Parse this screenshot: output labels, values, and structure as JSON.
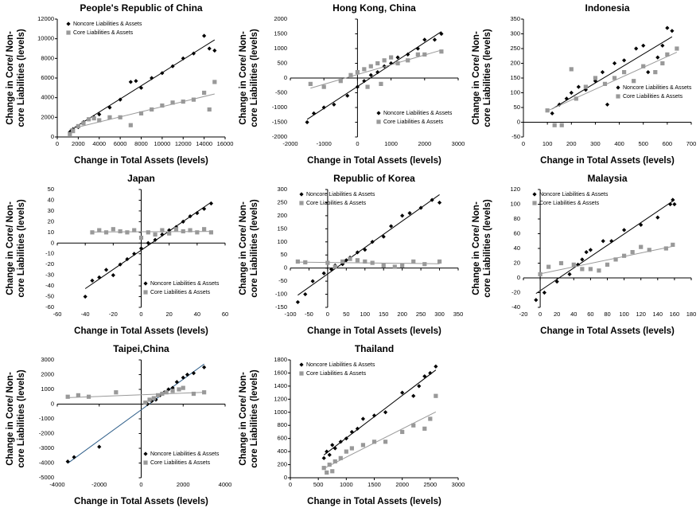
{
  "chart_data": [
    {
      "type": "scatter",
      "title": "People's Republic of China",
      "x_label": "Change in Total Assets (levels)",
      "y_label": [
        "Change in Core/ Non-",
        "core Liabilities (levels)"
      ],
      "legend": "upper left",
      "xlim": [
        0,
        16000
      ],
      "xticks": [
        0,
        2000,
        4000,
        6000,
        8000,
        10000,
        12000,
        14000,
        16000
      ],
      "ylim": [
        0,
        12000
      ],
      "yticks": [
        0,
        2000,
        4000,
        6000,
        8000,
        10000,
        12000
      ],
      "series": [
        {
          "name": "Noncore Liabilities & Assets",
          "color": "#000000",
          "marker": "diamond",
          "trend_color": "#000000",
          "x": [
            1200,
            1500,
            2000,
            2500,
            3000,
            3500,
            4000,
            5000,
            6000,
            7000,
            7500,
            8000,
            9000,
            10000,
            11000,
            12000,
            13000,
            14000,
            14500,
            15000
          ],
          "values": [
            500,
            800,
            1000,
            1500,
            1800,
            2000,
            2300,
            3000,
            3800,
            5600,
            5700,
            5000,
            6000,
            6500,
            7200,
            8000,
            8500,
            10300,
            9000,
            8800
          ]
        },
        {
          "name": "Core Liabilities & Assets",
          "color": "#999999",
          "marker": "square",
          "trend_color": "#999999",
          "x": [
            1200,
            1500,
            2000,
            2500,
            3000,
            3500,
            4000,
            5000,
            6000,
            7000,
            8000,
            9000,
            10000,
            11000,
            12000,
            13000,
            14000,
            14500,
            15000
          ],
          "values": [
            300,
            600,
            1100,
            1400,
            1800,
            1900,
            1700,
            2000,
            2000,
            1200,
            2400,
            2800,
            3200,
            3500,
            3600,
            3800,
            4500,
            2800,
            5600
          ]
        }
      ]
    },
    {
      "type": "scatter",
      "title": "Hong Kong, China",
      "x_label": "Change in Total Assets (levels)",
      "y_label": [
        "Change in Core/ Non-",
        "core Liabilities (levels)"
      ],
      "legend": "lower right",
      "xlim": [
        -2000,
        3000
      ],
      "xticks": [
        -2000,
        -1000,
        0,
        1000,
        2000,
        3000
      ],
      "ylim": [
        -2000,
        2000
      ],
      "yticks": [
        -2000,
        -1500,
        -1000,
        -500,
        0,
        500,
        1000,
        1500,
        2000
      ],
      "series": [
        {
          "name": "Noncore Liabilities & Assets",
          "color": "#000000",
          "marker": "diamond",
          "trend_color": "#000000",
          "x": [
            -1500,
            -1300,
            -1000,
            -700,
            -300,
            0,
            200,
            400,
            600,
            800,
            1000,
            1200,
            1500,
            1800,
            2000,
            2300,
            2500
          ],
          "values": [
            -1500,
            -1200,
            -1000,
            -900,
            -600,
            -300,
            -100,
            100,
            200,
            400,
            500,
            700,
            800,
            1000,
            1300,
            1300,
            1500
          ]
        },
        {
          "name": "Core Liabilities & Assets",
          "color": "#999999",
          "marker": "square",
          "trend_color": "#999999",
          "x": [
            -1400,
            -1000,
            -500,
            -200,
            0,
            200,
            400,
            600,
            800,
            1000,
            1200,
            1500,
            1800,
            2000,
            2500,
            300,
            700
          ],
          "values": [
            -200,
            -300,
            -100,
            100,
            200,
            300,
            400,
            500,
            600,
            700,
            500,
            600,
            800,
            800,
            900,
            -300,
            -200
          ]
        }
      ]
    },
    {
      "type": "scatter",
      "title": "Indonesia",
      "x_label": "Change in Total Assets (levels)",
      "y_label": [
        "Change in Core/ Non-",
        "core Liabilities (levels)"
      ],
      "legend": "center right",
      "xlim": [
        0,
        700
      ],
      "xticks": [
        0,
        100,
        200,
        300,
        400,
        500,
        600,
        700
      ],
      "ylim": [
        -50,
        350
      ],
      "yticks": [
        -50,
        0,
        50,
        100,
        150,
        200,
        250,
        300,
        350
      ],
      "series": [
        {
          "name": "Noncore Liabilities & Assets",
          "color": "#000000",
          "marker": "diamond",
          "trend_color": "#000000",
          "x": [
            120,
            150,
            180,
            200,
            230,
            260,
            300,
            330,
            350,
            380,
            420,
            470,
            500,
            520,
            560,
            580,
            600,
            620
          ],
          "values": [
            30,
            60,
            80,
            100,
            120,
            110,
            140,
            170,
            60,
            200,
            210,
            250,
            260,
            170,
            220,
            260,
            320,
            310
          ]
        },
        {
          "name": "Core Liabilities & Assets",
          "color": "#999999",
          "marker": "square",
          "trend_color": "#999999",
          "x": [
            100,
            130,
            160,
            200,
            220,
            260,
            300,
            340,
            380,
            420,
            460,
            500,
            550,
            580,
            600,
            640
          ],
          "values": [
            40,
            -10,
            -10,
            180,
            80,
            120,
            150,
            130,
            150,
            170,
            140,
            190,
            170,
            200,
            230,
            250
          ]
        }
      ]
    },
    {
      "type": "scatter",
      "title": "Japan",
      "x_label": "Change in Total Assets (levels)",
      "y_label": [
        "Change in Core/ Non-",
        "core Liabilities (levels)"
      ],
      "legend": "lower right",
      "xlim": [
        -60,
        60
      ],
      "xticks": [
        -60,
        -40,
        -20,
        0,
        20,
        40,
        60
      ],
      "ylim": [
        -60,
        50
      ],
      "yticks": [
        -60,
        -50,
        -40,
        -30,
        -20,
        -10,
        0,
        10,
        20,
        30,
        40,
        50
      ],
      "series": [
        {
          "name": "Noncore Liabilities & Assets",
          "color": "#000000",
          "marker": "diamond",
          "trend_color": "#000000",
          "x": [
            -40,
            -35,
            -30,
            -25,
            -20,
            -15,
            -10,
            -5,
            0,
            5,
            10,
            15,
            20,
            25,
            30,
            35,
            40,
            45,
            50
          ],
          "values": [
            -50,
            -35,
            -32,
            -25,
            -30,
            -20,
            -15,
            -10,
            -5,
            0,
            3,
            8,
            12,
            15,
            20,
            25,
            28,
            32,
            37
          ]
        },
        {
          "name": "Core Liabilities & Assets",
          "color": "#999999",
          "marker": "square",
          "trend_color": "#999999",
          "x": [
            -35,
            -30,
            -25,
            -20,
            -15,
            -10,
            -5,
            0,
            5,
            10,
            15,
            20,
            25,
            30,
            35,
            40,
            45,
            50
          ],
          "values": [
            10,
            12,
            10,
            13,
            11,
            10,
            12,
            5,
            10,
            8,
            12,
            9,
            13,
            11,
            12,
            10,
            13,
            10
          ]
        }
      ]
    },
    {
      "type": "scatter",
      "title": "Republic of Korea",
      "x_label": "Change in Total Assets (levels)",
      "y_label": [
        "Change in Core/ Non-",
        "core Liabilities (levels)"
      ],
      "legend": "upper left",
      "xlim": [
        -100,
        350
      ],
      "xticks": [
        -100,
        -50,
        0,
        50,
        100,
        150,
        200,
        250,
        300,
        350
      ],
      "ylim": [
        -150,
        300
      ],
      "yticks": [
        -150,
        -100,
        -50,
        0,
        50,
        100,
        150,
        200,
        250,
        300
      ],
      "series": [
        {
          "name": "Noncore Liabilities & Assets",
          "color": "#000000",
          "marker": "diamond",
          "trend_color": "#000000",
          "x": [
            -80,
            -60,
            -40,
            -10,
            10,
            20,
            40,
            50,
            60,
            80,
            100,
            120,
            150,
            170,
            200,
            220,
            250,
            280,
            300
          ],
          "values": [
            -130,
            -100,
            -50,
            -20,
            -5,
            10,
            15,
            30,
            40,
            60,
            70,
            100,
            120,
            160,
            200,
            210,
            230,
            260,
            250
          ]
        },
        {
          "name": "Core Liabilities & Assets",
          "color": "#999999",
          "marker": "square",
          "trend_color": "#999999",
          "x": [
            -80,
            -60,
            0,
            20,
            40,
            60,
            80,
            100,
            120,
            150,
            180,
            200,
            230,
            260,
            300
          ],
          "values": [
            25,
            22,
            20,
            5,
            25,
            35,
            30,
            25,
            20,
            10,
            5,
            10,
            25,
            15,
            25
          ]
        }
      ]
    },
    {
      "type": "scatter",
      "title": "Malaysia",
      "x_label": "Change in Total Assets (levels)",
      "y_label": [
        "Change in Core/ Non-",
        "core Liabilities (levels)"
      ],
      "legend": "upper left",
      "xlim": [
        -20,
        180
      ],
      "xticks": [
        -20,
        0,
        20,
        40,
        60,
        80,
        100,
        120,
        140,
        160,
        180
      ],
      "ylim": [
        -40,
        120
      ],
      "yticks": [
        -40,
        -20,
        0,
        20,
        40,
        60,
        80,
        100,
        120
      ],
      "series": [
        {
          "name": "Noncore Liabilities & Assets",
          "color": "#000000",
          "marker": "diamond",
          "trend_color": "#000000",
          "x": [
            -5,
            5,
            20,
            35,
            45,
            50,
            55,
            60,
            75,
            85,
            100,
            120,
            140,
            155,
            158,
            160
          ],
          "values": [
            -30,
            -20,
            -5,
            5,
            18,
            25,
            35,
            38,
            50,
            50,
            65,
            72,
            82,
            100,
            106,
            100
          ]
        },
        {
          "name": "Core Liabilities & Assets",
          "color": "#999999",
          "marker": "square",
          "trend_color": "#999999",
          "x": [
            0,
            10,
            25,
            40,
            50,
            60,
            70,
            80,
            90,
            100,
            110,
            120,
            130,
            150,
            158
          ],
          "values": [
            5,
            15,
            20,
            18,
            12,
            12,
            10,
            18,
            25,
            30,
            35,
            42,
            38,
            40,
            45
          ]
        }
      ]
    },
    {
      "type": "scatter",
      "title": "Taipei,China",
      "x_label": "Change in Total Assets (levels)",
      "y_label": [
        "Change in Core/ Non-",
        "core Liabilities (levels)"
      ],
      "legend": "lower right",
      "xlim": [
        -4000,
        4000
      ],
      "xticks": [
        -4000,
        -2000,
        0,
        2000,
        4000
      ],
      "ylim": [
        -5000,
        3000
      ],
      "yticks": [
        -5000,
        -4000,
        -3000,
        -2000,
        -1000,
        0,
        1000,
        2000,
        3000
      ],
      "series": [
        {
          "name": "Noncore Liabilities & Assets",
          "color": "#000000",
          "marker": "diamond",
          "trend_color": "#2f5f8a",
          "x": [
            -3500,
            -3200,
            -2000,
            300,
            500,
            700,
            900,
            1100,
            1300,
            1500,
            1700,
            2000,
            2200,
            2500,
            3000
          ],
          "values": [
            -3900,
            -3600,
            -2900,
            0,
            200,
            300,
            600,
            800,
            1000,
            1100,
            1500,
            1800,
            2000,
            2100,
            2500
          ]
        },
        {
          "name": "Core Liabilities & Assets",
          "color": "#999999",
          "marker": "square",
          "trend_color": "#999999",
          "x": [
            -3500,
            -3000,
            -2500,
            -1200,
            200,
            400,
            600,
            800,
            1000,
            1200,
            1500,
            1800,
            2000,
            2500,
            3000
          ],
          "values": [
            500,
            600,
            500,
            800,
            100,
            300,
            400,
            600,
            700,
            800,
            900,
            1000,
            1100,
            700,
            800
          ]
        }
      ]
    },
    {
      "type": "scatter",
      "title": "Thailand",
      "x_label": "Change in Total Assets (levels)",
      "y_label": [
        "Change in Core/ Non-",
        "core Liabilities (levels)"
      ],
      "legend": "upper left",
      "xlim": [
        0,
        3000
      ],
      "xticks": [
        0,
        500,
        1000,
        1500,
        2000,
        2500,
        3000
      ],
      "ylim": [
        0,
        1800
      ],
      "yticks": [
        0,
        200,
        400,
        600,
        800,
        1000,
        1200,
        1400,
        1600,
        1800
      ],
      "series": [
        {
          "name": "Noncore Liabilities & Assets",
          "color": "#000000",
          "marker": "diamond",
          "trend_color": "#000000",
          "x": [
            600,
            650,
            700,
            750,
            800,
            900,
            1000,
            1100,
            1200,
            1300,
            1500,
            1700,
            2000,
            2200,
            2300,
            2400,
            2500,
            2600
          ],
          "values": [
            300,
            400,
            350,
            500,
            450,
            550,
            600,
            700,
            750,
            900,
            950,
            1000,
            1300,
            1250,
            1400,
            1550,
            1600,
            1700
          ]
        },
        {
          "name": "Core Liabilities & Assets",
          "color": "#999999",
          "marker": "square",
          "trend_color": "#999999",
          "x": [
            600,
            650,
            700,
            750,
            800,
            900,
            1000,
            1100,
            1300,
            1500,
            1700,
            2000,
            2200,
            2400,
            2500,
            2600
          ],
          "values": [
            150,
            80,
            200,
            100,
            250,
            300,
            400,
            450,
            500,
            550,
            550,
            700,
            800,
            750,
            900,
            1250
          ]
        }
      ]
    }
  ]
}
